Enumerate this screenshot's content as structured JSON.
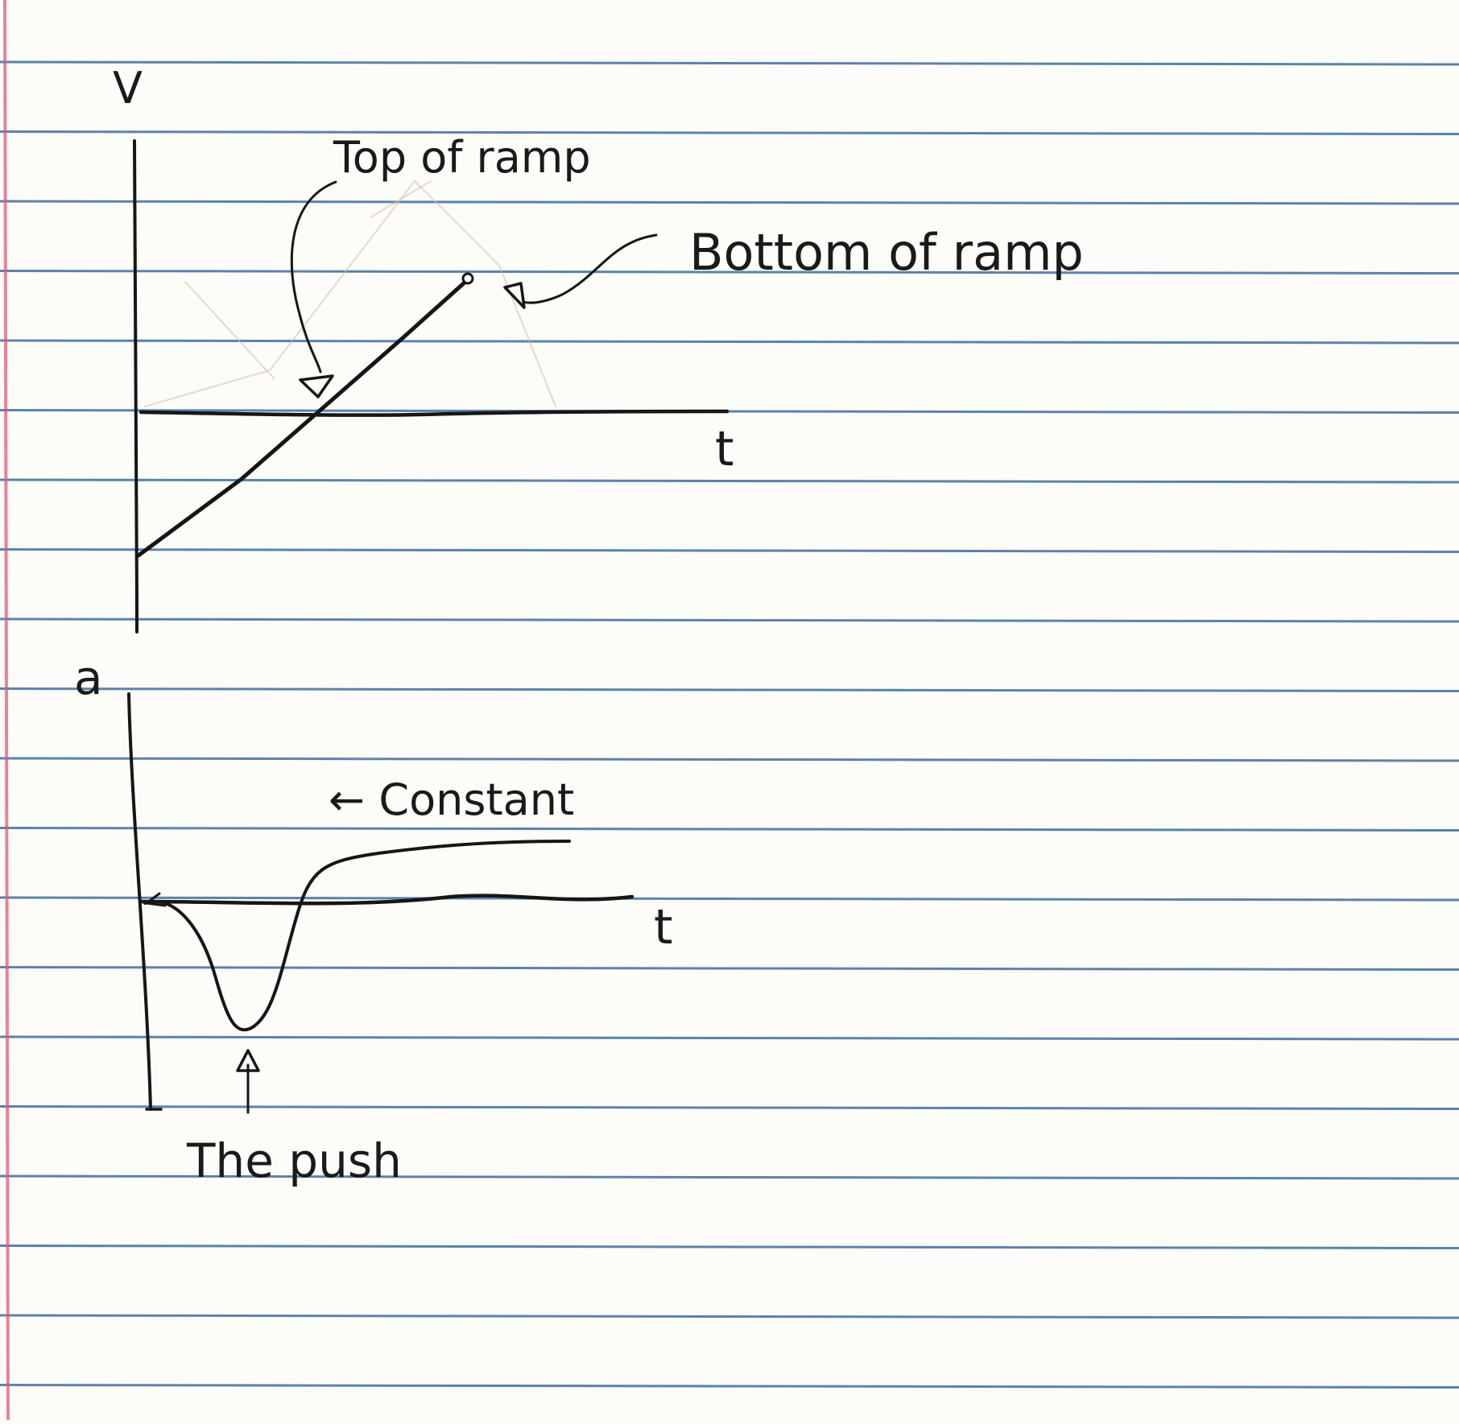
{
  "top_graph": {
    "y_axis_label": "V",
    "x_axis_label": "t",
    "annotation_top": "Top of ramp",
    "annotation_bottom": "Bottom of ramp"
  },
  "bottom_graph": {
    "y_axis_label": "a",
    "x_axis_label": "t",
    "annotation_constant": "← Constant",
    "annotation_push": "The push"
  },
  "colors": {
    "paper": "#fcfcf9",
    "rule_line": "#3f6f9c",
    "margin_line": "#e05a78",
    "ink": "#161616"
  }
}
